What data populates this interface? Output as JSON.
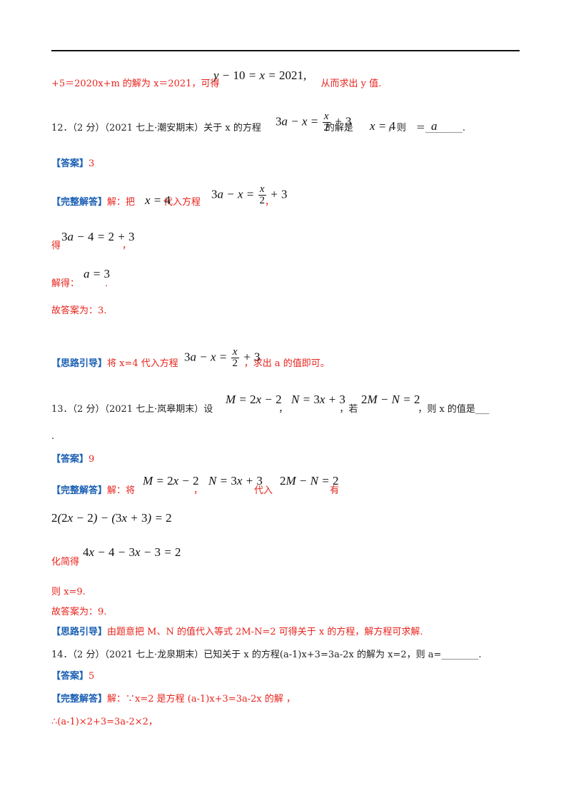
{
  "l1": {
    "a": "+5＝2020x+m 的解为 x＝2021，可得",
    "b": "从而求出 y 值."
  },
  "q12": {
    "stem": "12．（2 分）（2021 七上·潮安期末）关于 x 的方程",
    "mid": "的解是",
    "tail": "，则",
    "blank": "＝________."
  },
  "a12": {
    "ans_tag": "【答案】",
    "ans": "3",
    "sol_tag": "【完整解答】",
    "sol_a": "解：把",
    "sol_b": "代入方程",
    "comma": "，",
    "de": "得",
    "jiede": "解得：",
    "dot": ".",
    "final": "故答案为：3.",
    "hint_tag": "【思路引导】",
    "hint_a": "将 x=4 代入方程",
    "hint_b": "，求出 a 的值即可。"
  },
  "q13": {
    "stem": "13．（2 分）（2021 七上·岚皋期末）设",
    "c1": "，",
    "c2": "，若",
    "tail": "，则 x 的值是___",
    "dot": "."
  },
  "a13": {
    "ans_tag": "【答案】",
    "ans": "9",
    "sol_tag": "【完整解答】",
    "sol_a": "解：将",
    "c1": "，",
    "dairu": "代入",
    "you": "有",
    "huajian": "化简得",
    "ze": "则 x=9.",
    "final": "故答案为：9.",
    "hint_tag": "【思路引导】",
    "hint": "由题意把 M、N 的值代入等式 2M-N=2 可得关于 x 的方程，解方程可求解."
  },
  "q14": {
    "stem": "14．（2 分）（2021 七上·龙泉期末）已知关于 x 的方程(a-1)x+3=3a-2x 的解为 x=2，则 a=________."
  },
  "a14": {
    "ans_tag": "【答案】",
    "ans": "5",
    "sol_tag": "【完整解答】",
    "sol": "解：∵x=2 是方程 (a-1)x+3=3a-2x 的解 ，",
    "step": "∴(a-1)×2+3=3a-2×2，"
  }
}
